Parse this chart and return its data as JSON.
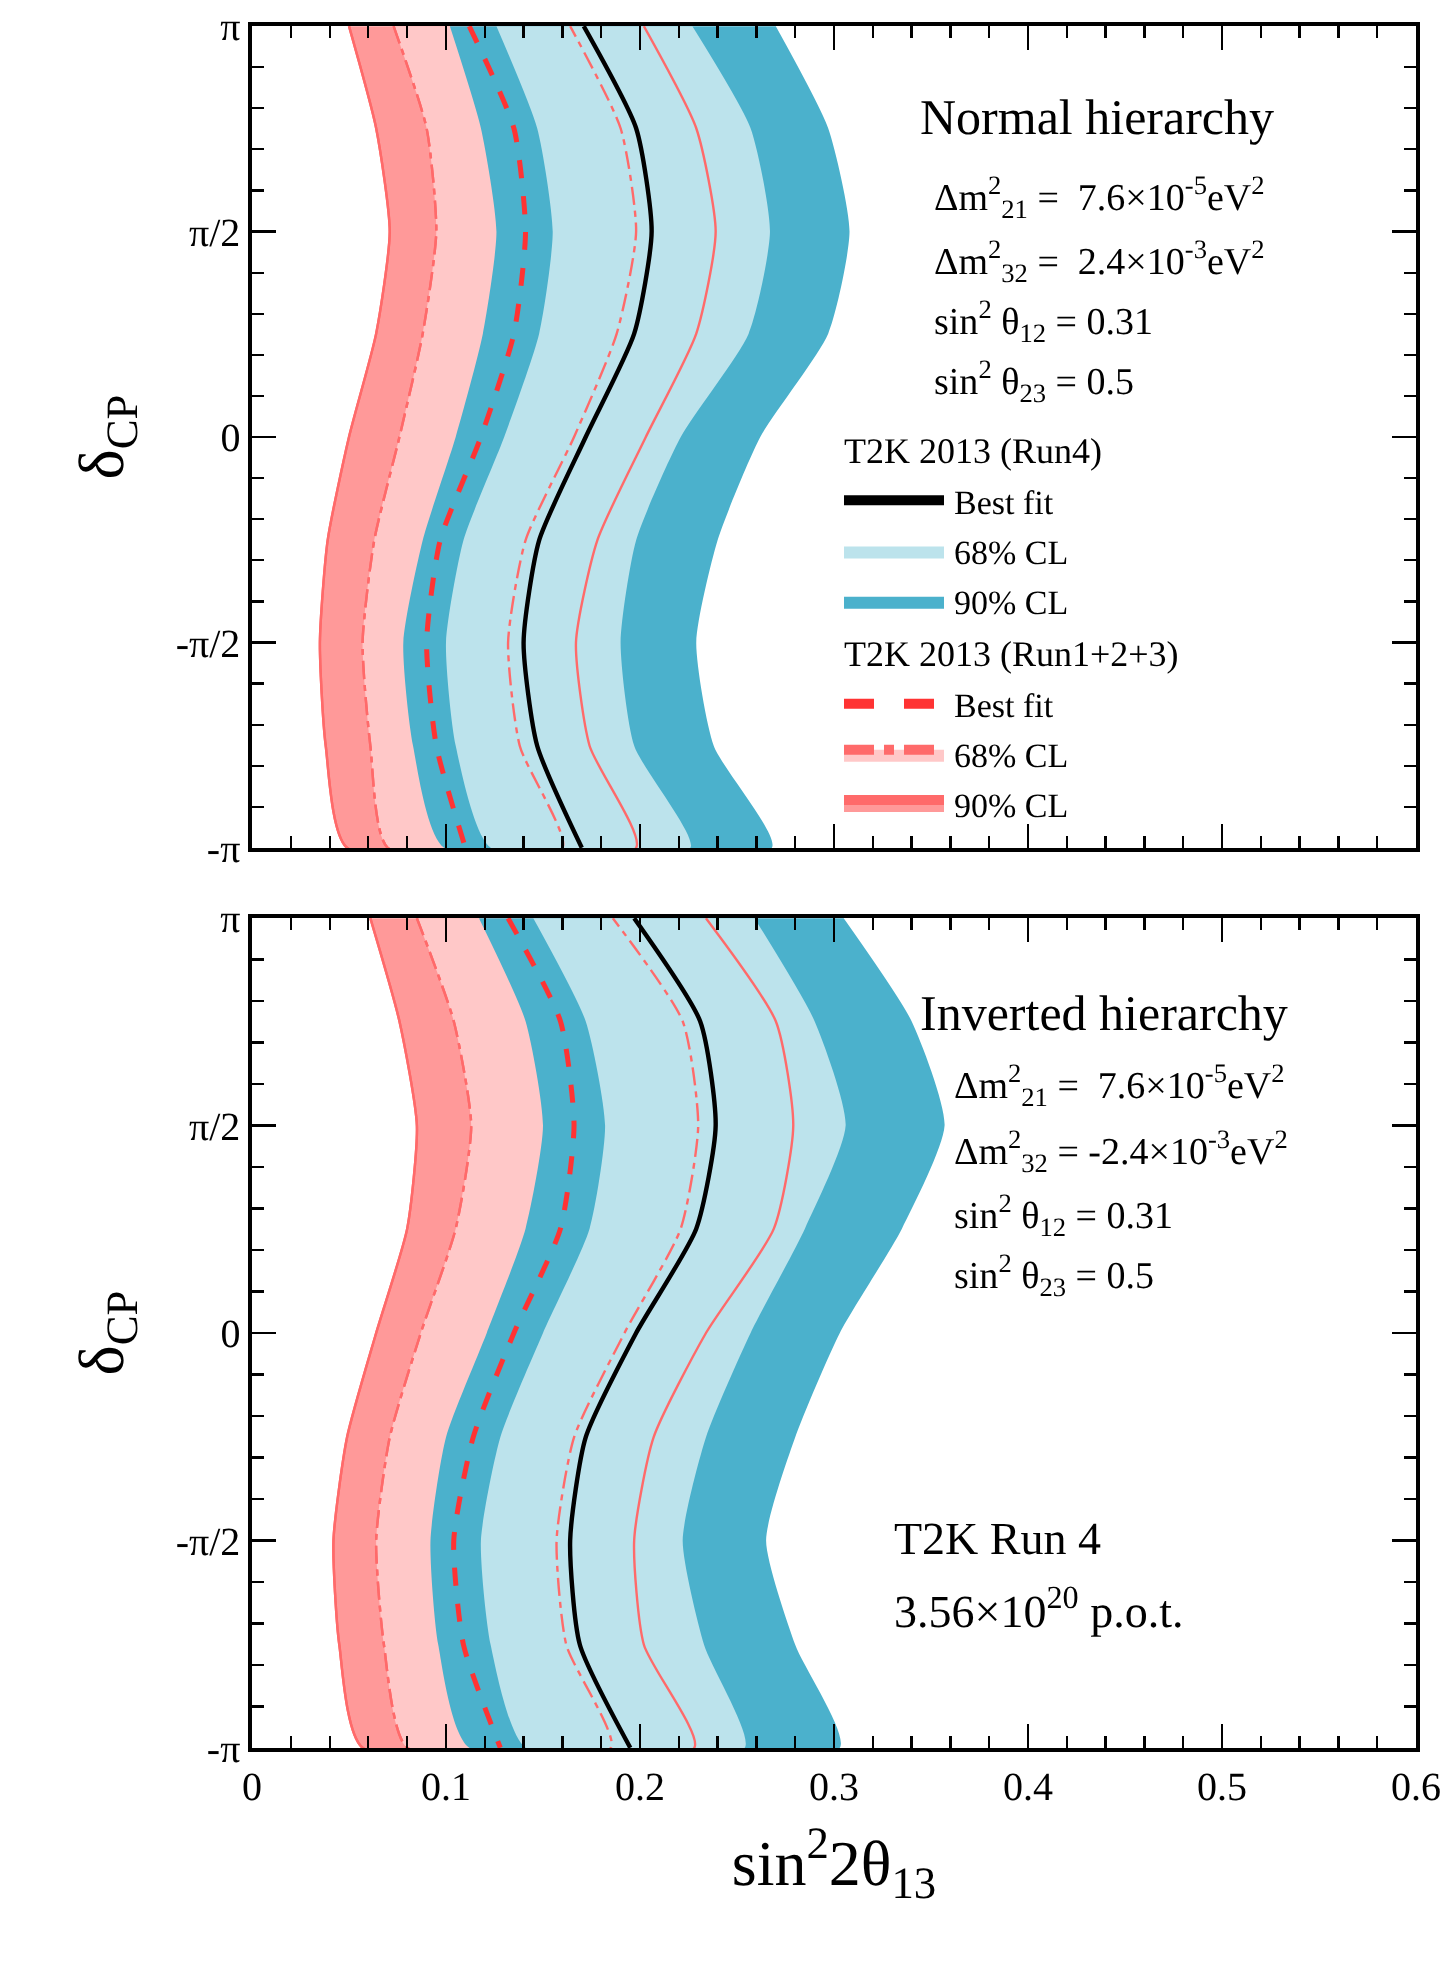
{
  "chart_data": [
    {
      "type": "area",
      "xlim": [
        0,
        0.6
      ],
      "ylim": [
        -3.1416,
        3.1416
      ],
      "tick_labels": "y",
      "ylabel": "δ$_{CP}$",
      "legend": "right",
      "legend_title": [
        "T2K 2013 (Run4)",
        "T2K 2013 (Run1+2+3)"
      ],
      "xticks": [
        0,
        {
          "value": 0.02,
          "label": null
        },
        {
          "value": 0.04,
          "label": null
        },
        {
          "value": 0.06,
          "label": null
        },
        {
          "value": 0.08,
          "label": null
        },
        0.1,
        {
          "value": 0.12,
          "label": null
        },
        {
          "value": 0.14,
          "label": null
        },
        {
          "value": 0.16,
          "label": null
        },
        {
          "value": 0.18,
          "label": null
        },
        0.2,
        {
          "value": 0.22,
          "label": null
        },
        {
          "value": 0.24,
          "label": null
        },
        {
          "value": 0.26,
          "label": null
        },
        {
          "value": 0.28,
          "label": null
        },
        0.3,
        {
          "value": 0.32,
          "label": null
        },
        {
          "value": 0.34,
          "label": null
        },
        {
          "value": 0.36,
          "label": null
        },
        {
          "value": 0.38,
          "label": null
        },
        0.4,
        {
          "value": 0.42,
          "label": null
        },
        {
          "value": 0.44,
          "label": null
        },
        {
          "value": 0.46,
          "label": null
        },
        {
          "value": 0.48,
          "label": null
        },
        0.5,
        {
          "value": 0.52,
          "label": null
        },
        {
          "value": 0.54,
          "label": null
        },
        {
          "value": 0.56,
          "label": null
        },
        {
          "value": 0.58,
          "label": null
        },
        0.6
      ],
      "yticks": [
        {
          "value": -3.1416,
          "label": "-π"
        },
        {
          "value": -2.8274,
          "label": null
        },
        {
          "value": -2.5133,
          "label": null
        },
        {
          "value": -2.1991,
          "label": null
        },
        {
          "value": -1.885,
          "label": null
        },
        {
          "value": -1.5708,
          "label": "-π/2"
        },
        {
          "value": -1.2566,
          "label": null
        },
        {
          "value": -0.9425,
          "label": null
        },
        {
          "value": -0.6283,
          "label": null
        },
        {
          "value": -0.3142,
          "label": null
        },
        0,
        {
          "value": 0.3142,
          "label": null
        },
        {
          "value": 0.6283,
          "label": null
        },
        {
          "value": 0.9425,
          "label": null
        },
        {
          "value": 1.2566,
          "label": null
        },
        {
          "value": 1.5708,
          "label": "π/2"
        },
        {
          "value": 1.885,
          "label": null
        },
        {
          "value": 2.1991,
          "label": null
        },
        {
          "value": 2.5133,
          "label": null
        },
        {
          "value": 2.8274,
          "label": null
        },
        {
          "value": 3.1416,
          "label": "π"
        }
      ],
      "annotations": [
        "Normal hierarchy",
        "Δm$^{2}$$_{21}$ =  7.6×10$^{-5}$eV$^{2}$",
        "Δm$^{2}$$_{32}$ =  2.4×10$^{-3}$eV$^{2}$",
        "sin$^{2}$ θ$_{12}$ = 0.31",
        "sin$^{2}$ θ$_{23}$ = 0.5"
      ],
      "series": [
        {
          "name": "Best fit",
          "type": "line",
          "color": "#000000",
          "line_style": "solid",
          "x": [
            0.171,
            0.198,
            0.206,
            0.197,
            0.172,
            0.148,
            0.14,
            0.147,
            0.17
          ],
          "values": [
            3.14,
            2.36,
            1.57,
            0.79,
            0,
            -0.79,
            -1.57,
            -2.36,
            -3.14
          ]
        },
        {
          "name": "68% CL",
          "type": "area",
          "color": "#bce3ec",
          "x": [
            0.126,
            0.147,
            0.155,
            0.148,
            0.13,
            0.109,
            0.1,
            0.105,
            0.123,
            0.226,
            0.197,
            0.19,
            0.198,
            0.221,
            0.256,
            0.267,
            0.257,
            0.227
          ],
          "values": [
            3.14,
            2.36,
            1.57,
            0.79,
            0,
            -0.79,
            -1.57,
            -2.36,
            -3.14,
            -3.14,
            -2.36,
            -1.57,
            -0.79,
            0,
            0.79,
            1.57,
            2.36,
            3.14
          ]
        },
        {
          "name": "90% CL",
          "type": "area",
          "color": "#4bb1cc",
          "x": [
            0.102,
            0.118,
            0.126,
            0.119,
            0.105,
            0.088,
            0.078,
            0.083,
            0.099,
            0.268,
            0.238,
            0.229,
            0.24,
            0.262,
            0.297,
            0.308,
            0.297,
            0.27
          ],
          "values": [
            3.14,
            2.36,
            1.57,
            0.79,
            0,
            -0.79,
            -1.57,
            -2.36,
            -3.14,
            -3.14,
            -2.36,
            -1.57,
            -0.79,
            0,
            0.79,
            1.57,
            2.36,
            3.14
          ]
        },
        {
          "name": "Best fit",
          "type": "line",
          "color": "#ff3333",
          "line_style": "dashed",
          "x": [
            0.112,
            0.135,
            0.141,
            0.135,
            0.118,
            0.097,
            0.09,
            0.095,
            0.11
          ],
          "values": [
            3.14,
            2.36,
            1.57,
            0.79,
            0,
            -0.79,
            -1.57,
            -2.36,
            -3.14
          ]
        },
        {
          "name": "68% CL",
          "type": "area",
          "color": "#ffc8c8",
          "line_style": "dotted",
          "x": [
            0.073,
            0.09,
            0.095,
            0.088,
            0.076,
            0.063,
            0.057,
            0.061,
            0.07,
            0.16,
            0.138,
            0.132,
            0.141,
            0.166,
            0.188,
            0.198,
            0.19,
            0.164
          ],
          "values": [
            3.14,
            2.36,
            1.57,
            0.79,
            0,
            -0.79,
            -1.57,
            -2.36,
            -3.14,
            -3.14,
            -2.36,
            -1.57,
            -0.79,
            0,
            0.79,
            1.57,
            2.36,
            3.14
          ]
        },
        {
          "name": "90% CL",
          "type": "area",
          "color": "#ff9999",
          "line_style": "solid",
          "x": [
            0.05,
            0.064,
            0.071,
            0.064,
            0.05,
            0.039,
            0.035,
            0.038,
            0.049,
            0.198,
            0.174,
            0.167,
            0.178,
            0.203,
            0.229,
            0.239,
            0.229,
            0.202
          ],
          "values": [
            3.14,
            2.36,
            1.57,
            0.79,
            0,
            -0.79,
            -1.57,
            -2.36,
            -3.14,
            -3.14,
            -2.36,
            -1.57,
            -0.79,
            0,
            0.79,
            1.57,
            2.36,
            3.14
          ]
        }
      ]
    },
    {
      "type": "area",
      "xlim": [
        0,
        0.6
      ],
      "ylim": [
        -3.1416,
        3.1416
      ],
      "xlabel": "sin$^{2}$2θ$_{13}$",
      "ylabel": "δ$_{CP}$",
      "xticks": [
        0,
        {
          "value": 0.02,
          "label": null
        },
        {
          "value": 0.04,
          "label": null
        },
        {
          "value": 0.06,
          "label": null
        },
        {
          "value": 0.08,
          "label": null
        },
        0.1,
        {
          "value": 0.12,
          "label": null
        },
        {
          "value": 0.14,
          "label": null
        },
        {
          "value": 0.16,
          "label": null
        },
        {
          "value": 0.18,
          "label": null
        },
        0.2,
        {
          "value": 0.22,
          "label": null
        },
        {
          "value": 0.24,
          "label": null
        },
        {
          "value": 0.26,
          "label": null
        },
        {
          "value": 0.28,
          "label": null
        },
        0.3,
        {
          "value": 0.32,
          "label": null
        },
        {
          "value": 0.34,
          "label": null
        },
        {
          "value": 0.36,
          "label": null
        },
        {
          "value": 0.38,
          "label": null
        },
        0.4,
        {
          "value": 0.42,
          "label": null
        },
        {
          "value": 0.44,
          "label": null
        },
        {
          "value": 0.46,
          "label": null
        },
        {
          "value": 0.48,
          "label": null
        },
        0.5,
        {
          "value": 0.52,
          "label": null
        },
        {
          "value": 0.54,
          "label": null
        },
        {
          "value": 0.56,
          "label": null
        },
        {
          "value": 0.58,
          "label": null
        },
        0.6
      ],
      "yticks": [
        {
          "value": -3.1416,
          "label": "-π"
        },
        {
          "value": -2.8274,
          "label": null
        },
        {
          "value": -2.5133,
          "label": null
        },
        {
          "value": -2.1991,
          "label": null
        },
        {
          "value": -1.885,
          "label": null
        },
        {
          "value": -1.5708,
          "label": "-π/2"
        },
        {
          "value": -1.2566,
          "label": null
        },
        {
          "value": -0.9425,
          "label": null
        },
        {
          "value": -0.6283,
          "label": null
        },
        {
          "value": -0.3142,
          "label": null
        },
        0,
        {
          "value": 0.3142,
          "label": null
        },
        {
          "value": 0.6283,
          "label": null
        },
        {
          "value": 0.9425,
          "label": null
        },
        {
          "value": 1.2566,
          "label": null
        },
        {
          "value": 1.5708,
          "label": "π/2"
        },
        {
          "value": 1.885,
          "label": null
        },
        {
          "value": 2.1991,
          "label": null
        },
        {
          "value": 2.5133,
          "label": null
        },
        {
          "value": 2.8274,
          "label": null
        },
        {
          "value": 3.1416,
          "label": "π"
        }
      ],
      "annotations": [
        "Inverted hierarchy",
        "Δm$^{2}$$_{21}$ =  7.6×10$^{-5}$eV$^{2}$",
        "Δm$^{2}$$_{32}$ = -2.4×10$^{-3}$eV$^{2}$",
        "sin$^{2}$ θ$_{12}$ = 0.31",
        "sin$^{2}$ θ$_{23}$ = 0.5",
        "T2K Run 4",
        "3.56×10$^{20}$ p.o.t."
      ],
      "series": [
        {
          "type": "line",
          "color": "#000000",
          "line_style": "solid",
          "x": [
            0.197,
            0.231,
            0.239,
            0.229,
            0.198,
            0.172,
            0.164,
            0.169,
            0.195
          ],
          "values": [
            3.14,
            2.36,
            1.57,
            0.79,
            0,
            -0.79,
            -1.57,
            -2.36,
            -3.14
          ]
        },
        {
          "type": "area",
          "color": "#bce3ec",
          "x": [
            0.145,
            0.172,
            0.182,
            0.174,
            0.15,
            0.128,
            0.118,
            0.123,
            0.141,
            0.254,
            0.233,
            0.222,
            0.234,
            0.257,
            0.285,
            0.306,
            0.29,
            0.259
          ],
          "values": [
            3.14,
            2.36,
            1.57,
            0.79,
            0,
            -0.79,
            -1.57,
            -2.36,
            -3.14,
            -3.14,
            -2.36,
            -1.57,
            -0.79,
            0,
            0.79,
            1.57,
            2.36,
            3.14
          ]
        },
        {
          "type": "area",
          "color": "#4bb1cc",
          "x": [
            0.117,
            0.141,
            0.15,
            0.141,
            0.121,
            0.1,
            0.092,
            0.096,
            0.112,
            0.303,
            0.28,
            0.265,
            0.28,
            0.303,
            0.335,
            0.357,
            0.34,
            0.305
          ],
          "values": [
            3.14,
            2.36,
            1.57,
            0.79,
            0,
            -0.79,
            -1.57,
            -2.36,
            -3.14,
            -3.14,
            -2.36,
            -1.57,
            -0.79,
            0,
            0.79,
            1.57,
            2.36,
            3.14
          ]
        },
        {
          "type": "line",
          "color": "#ff3333",
          "line_style": "dashed",
          "x": [
            0.132,
            0.159,
            0.166,
            0.159,
            0.135,
            0.114,
            0.104,
            0.109,
            0.128
          ],
          "values": [
            3.14,
            2.36,
            1.57,
            0.79,
            0,
            -0.79,
            -1.57,
            -2.36,
            -3.14
          ]
        },
        {
          "type": "area",
          "color": "#ffc8c8",
          "line_style": "dotted",
          "x": [
            0.085,
            0.104,
            0.113,
            0.105,
            0.087,
            0.071,
            0.064,
            0.068,
            0.08,
            0.185,
            0.162,
            0.157,
            0.166,
            0.192,
            0.221,
            0.23,
            0.222,
            0.186
          ],
          "values": [
            3.14,
            2.36,
            1.57,
            0.79,
            0,
            -0.79,
            -1.57,
            -2.36,
            -3.14,
            -3.14,
            -2.36,
            -1.57,
            -0.79,
            0,
            0.79,
            1.57,
            2.36,
            3.14
          ]
        },
        {
          "type": "area",
          "color": "#ff9999",
          "line_style": "solid",
          "x": [
            0.061,
            0.076,
            0.085,
            0.08,
            0.064,
            0.049,
            0.042,
            0.045,
            0.057,
            0.228,
            0.202,
            0.197,
            0.207,
            0.234,
            0.269,
            0.279,
            0.27,
            0.234
          ],
          "values": [
            3.14,
            2.36,
            1.57,
            0.79,
            0,
            -0.79,
            -1.57,
            -2.36,
            -3.14,
            -3.14,
            -2.36,
            -1.57,
            -0.79,
            0,
            0.79,
            1.57,
            2.36,
            3.14
          ]
        }
      ]
    }
  ]
}
